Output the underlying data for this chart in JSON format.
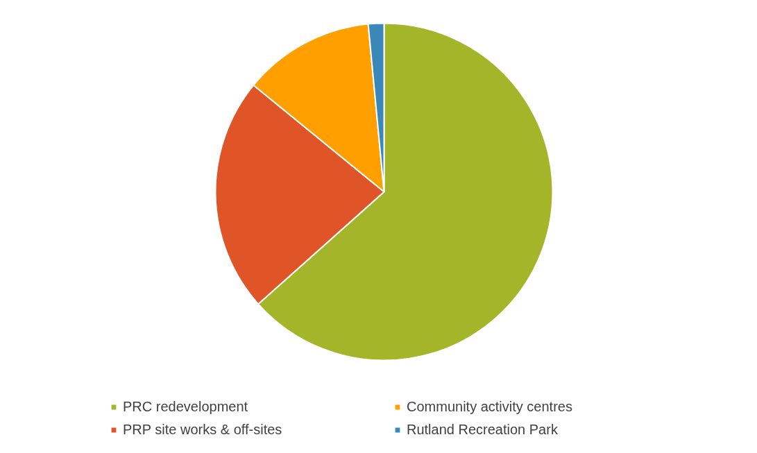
{
  "chart_data": {
    "type": "pie",
    "categories": [
      "PRC redevelopment",
      "PRP site works & off-sites",
      "Community activity centres",
      "Rutland Recreation Park"
    ],
    "values": [
      63.4,
      22.5,
      12.6,
      1.5
    ],
    "colors": [
      "#a5b52a",
      "#e05527",
      "#ff9f00",
      "#3a87b8"
    ],
    "legend": "bottom"
  }
}
